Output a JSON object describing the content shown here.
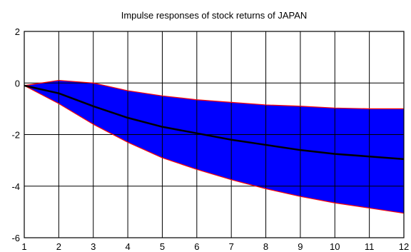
{
  "chart_data": {
    "type": "area",
    "title": "Impulse responses of stock returns of JAPAN",
    "xlabel": "",
    "ylabel": "",
    "x": [
      1,
      2,
      3,
      4,
      5,
      6,
      7,
      8,
      9,
      10,
      11,
      12
    ],
    "xlim": [
      1,
      12
    ],
    "ylim": [
      -6,
      2
    ],
    "xticks": [
      1,
      2,
      3,
      4,
      5,
      6,
      7,
      8,
      9,
      10,
      11,
      12
    ],
    "yticks": [
      -6,
      -4,
      -2,
      0,
      2
    ],
    "grid": true,
    "series": [
      {
        "role": "upper",
        "values": [
          -0.1,
          0.1,
          0.0,
          -0.3,
          -0.5,
          -0.65,
          -0.75,
          -0.85,
          -0.9,
          -0.97,
          -1.0,
          -1.0
        ]
      },
      {
        "role": "central",
        "values": [
          -0.1,
          -0.4,
          -0.9,
          -1.35,
          -1.7,
          -1.95,
          -2.2,
          -2.4,
          -2.6,
          -2.75,
          -2.85,
          -2.95
        ]
      },
      {
        "role": "lower",
        "values": [
          -0.1,
          -0.8,
          -1.6,
          -2.3,
          -2.9,
          -3.35,
          -3.75,
          -4.1,
          -4.4,
          -4.65,
          -4.85,
          -5.05
        ]
      }
    ],
    "colors": {
      "band": "#0000ff",
      "band_edge": "#ff0000",
      "central": "#000000"
    }
  }
}
